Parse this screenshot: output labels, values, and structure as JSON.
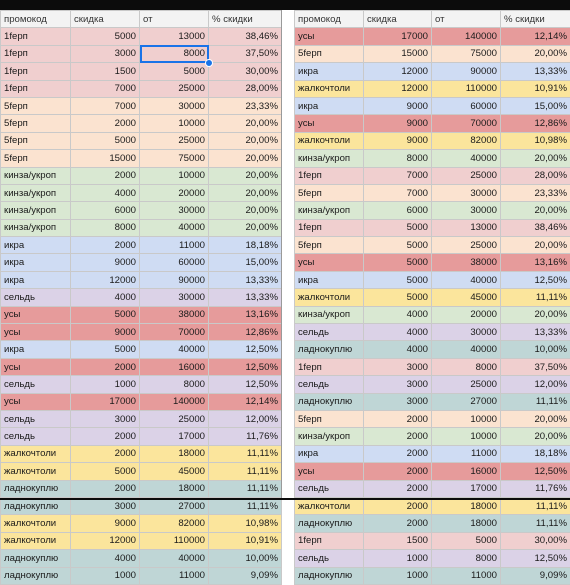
{
  "headers": [
    "промокод",
    "скидка",
    "от",
    "% скидки"
  ],
  "colors": {
    "1ferp": "#f0cfcf",
    "5ferp": "#fbe3d0",
    "kinza": "#d9e8d2",
    "ikra": "#cfdcf3",
    "sel": "#dbd2e7",
    "usy": "#e69b9b",
    "zhalko": "#fbe59c",
    "ladno": "#bfd6d6"
  },
  "left_rows": [
    {
      "code": "1ferp",
      "name": "1fерп",
      "d": "5000",
      "ot": "13000",
      "p": "38,46%"
    },
    {
      "code": "1ferp",
      "name": "1fерп",
      "d": "3000",
      "ot": "8000",
      "p": "37,50%"
    },
    {
      "code": "1ferp",
      "name": "1fерп",
      "d": "1500",
      "ot": "5000",
      "p": "30,00%"
    },
    {
      "code": "1ferp",
      "name": "1fерп",
      "d": "7000",
      "ot": "25000",
      "p": "28,00%"
    },
    {
      "code": "5ferp",
      "name": "5fерп",
      "d": "7000",
      "ot": "30000",
      "p": "23,33%"
    },
    {
      "code": "5ferp",
      "name": "5fерп",
      "d": "2000",
      "ot": "10000",
      "p": "20,00%"
    },
    {
      "code": "5ferp",
      "name": "5fерп",
      "d": "5000",
      "ot": "25000",
      "p": "20,00%"
    },
    {
      "code": "5ferp",
      "name": "5fерп",
      "d": "15000",
      "ot": "75000",
      "p": "20,00%"
    },
    {
      "code": "kinza",
      "name": "кинза/укроп",
      "d": "2000",
      "ot": "10000",
      "p": "20,00%"
    },
    {
      "code": "kinza",
      "name": "кинза/укроп",
      "d": "4000",
      "ot": "20000",
      "p": "20,00%"
    },
    {
      "code": "kinza",
      "name": "кинза/укроп",
      "d": "6000",
      "ot": "30000",
      "p": "20,00%"
    },
    {
      "code": "kinza",
      "name": "кинза/укроп",
      "d": "8000",
      "ot": "40000",
      "p": "20,00%"
    },
    {
      "code": "ikra",
      "name": "икра",
      "d": "2000",
      "ot": "11000",
      "p": "18,18%"
    },
    {
      "code": "ikra",
      "name": "икра",
      "d": "9000",
      "ot": "60000",
      "p": "15,00%"
    },
    {
      "code": "ikra",
      "name": "икра",
      "d": "12000",
      "ot": "90000",
      "p": "13,33%"
    },
    {
      "code": "sel",
      "name": "сельдь",
      "d": "4000",
      "ot": "30000",
      "p": "13,33%"
    },
    {
      "code": "usy",
      "name": "усы",
      "d": "5000",
      "ot": "38000",
      "p": "13,16%"
    },
    {
      "code": "usy",
      "name": "усы",
      "d": "9000",
      "ot": "70000",
      "p": "12,86%"
    },
    {
      "code": "ikra",
      "name": "икра",
      "d": "5000",
      "ot": "40000",
      "p": "12,50%"
    },
    {
      "code": "usy",
      "name": "усы",
      "d": "2000",
      "ot": "16000",
      "p": "12,50%"
    },
    {
      "code": "sel",
      "name": "сельдь",
      "d": "1000",
      "ot": "8000",
      "p": "12,50%"
    },
    {
      "code": "usy",
      "name": "усы",
      "d": "17000",
      "ot": "140000",
      "p": "12,14%"
    },
    {
      "code": "sel",
      "name": "сельдь",
      "d": "3000",
      "ot": "25000",
      "p": "12,00%"
    },
    {
      "code": "sel",
      "name": "сельдь",
      "d": "2000",
      "ot": "17000",
      "p": "11,76%"
    },
    {
      "code": "zhalko",
      "name": "жалкочтоли",
      "d": "2000",
      "ot": "18000",
      "p": "11,11%"
    },
    {
      "code": "zhalko",
      "name": "жалкочтоли",
      "d": "5000",
      "ot": "45000",
      "p": "11,11%"
    },
    {
      "code": "ladno",
      "name": "ладнокуплю",
      "d": "2000",
      "ot": "18000",
      "p": "11,11%"
    },
    {
      "code": "ladno",
      "name": "ладнокуплю",
      "d": "3000",
      "ot": "27000",
      "p": "11,11%"
    },
    {
      "code": "zhalko",
      "name": "жалкочтоли",
      "d": "9000",
      "ot": "82000",
      "p": "10,98%"
    },
    {
      "code": "zhalko",
      "name": "жалкочтоли",
      "d": "12000",
      "ot": "110000",
      "p": "10,91%"
    },
    {
      "code": "ladno",
      "name": "ладнокуплю",
      "d": "4000",
      "ot": "40000",
      "p": "10,00%"
    },
    {
      "code": "ladno",
      "name": "ладнокуплю",
      "d": "1000",
      "ot": "11000",
      "p": "9,09%"
    }
  ],
  "right_rows": [
    {
      "code": "usy",
      "name": "усы",
      "d": "17000",
      "ot": "140000",
      "p": "12,14%"
    },
    {
      "code": "5ferp",
      "name": "5fерп",
      "d": "15000",
      "ot": "75000",
      "p": "20,00%"
    },
    {
      "code": "ikra",
      "name": "икра",
      "d": "12000",
      "ot": "90000",
      "p": "13,33%"
    },
    {
      "code": "zhalko",
      "name": "жалкочтоли",
      "d": "12000",
      "ot": "110000",
      "p": "10,91%"
    },
    {
      "code": "ikra",
      "name": "икра",
      "d": "9000",
      "ot": "60000",
      "p": "15,00%"
    },
    {
      "code": "usy",
      "name": "усы",
      "d": "9000",
      "ot": "70000",
      "p": "12,86%"
    },
    {
      "code": "zhalko",
      "name": "жалкочтоли",
      "d": "9000",
      "ot": "82000",
      "p": "10,98%"
    },
    {
      "code": "kinza",
      "name": "кинза/укроп",
      "d": "8000",
      "ot": "40000",
      "p": "20,00%"
    },
    {
      "code": "1ferp",
      "name": "1fерп",
      "d": "7000",
      "ot": "25000",
      "p": "28,00%"
    },
    {
      "code": "5ferp",
      "name": "5fерп",
      "d": "7000",
      "ot": "30000",
      "p": "23,33%"
    },
    {
      "code": "kinza",
      "name": "кинза/укроп",
      "d": "6000",
      "ot": "30000",
      "p": "20,00%"
    },
    {
      "code": "1ferp",
      "name": "1fерп",
      "d": "5000",
      "ot": "13000",
      "p": "38,46%"
    },
    {
      "code": "5ferp",
      "name": "5fерп",
      "d": "5000",
      "ot": "25000",
      "p": "20,00%"
    },
    {
      "code": "usy",
      "name": "усы",
      "d": "5000",
      "ot": "38000",
      "p": "13,16%"
    },
    {
      "code": "ikra",
      "name": "икра",
      "d": "5000",
      "ot": "40000",
      "p": "12,50%"
    },
    {
      "code": "zhalko",
      "name": "жалкочтоли",
      "d": "5000",
      "ot": "45000",
      "p": "11,11%"
    },
    {
      "code": "kinza",
      "name": "кинза/укроп",
      "d": "4000",
      "ot": "20000",
      "p": "20,00%"
    },
    {
      "code": "sel",
      "name": "сельдь",
      "d": "4000",
      "ot": "30000",
      "p": "13,33%"
    },
    {
      "code": "ladno",
      "name": "ладнокуплю",
      "d": "4000",
      "ot": "40000",
      "p": "10,00%"
    },
    {
      "code": "1ferp",
      "name": "1fерп",
      "d": "3000",
      "ot": "8000",
      "p": "37,50%"
    },
    {
      "code": "sel",
      "name": "сельдь",
      "d": "3000",
      "ot": "25000",
      "p": "12,00%"
    },
    {
      "code": "ladno",
      "name": "ладнокуплю",
      "d": "3000",
      "ot": "27000",
      "p": "11,11%"
    },
    {
      "code": "5ferp",
      "name": "5fерп",
      "d": "2000",
      "ot": "10000",
      "p": "20,00%"
    },
    {
      "code": "kinza",
      "name": "кинза/укроп",
      "d": "2000",
      "ot": "10000",
      "p": "20,00%"
    },
    {
      "code": "ikra",
      "name": "икра",
      "d": "2000",
      "ot": "11000",
      "p": "18,18%"
    },
    {
      "code": "usy",
      "name": "усы",
      "d": "2000",
      "ot": "16000",
      "p": "12,50%"
    },
    {
      "code": "sel",
      "name": "сельдь",
      "d": "2000",
      "ot": "17000",
      "p": "11,76%"
    },
    {
      "code": "zhalko",
      "name": "жалкочтоли",
      "d": "2000",
      "ot": "18000",
      "p": "11,11%"
    },
    {
      "code": "ladno",
      "name": "ладнокуплю",
      "d": "2000",
      "ot": "18000",
      "p": "11,11%"
    },
    {
      "code": "1ferp",
      "name": "1fерп",
      "d": "1500",
      "ot": "5000",
      "p": "30,00%"
    },
    {
      "code": "sel",
      "name": "сельдь",
      "d": "1000",
      "ot": "8000",
      "p": "12,50%"
    },
    {
      "code": "ladno",
      "name": "ладнокуплю",
      "d": "1000",
      "ot": "11000",
      "p": "9,09%"
    }
  ]
}
